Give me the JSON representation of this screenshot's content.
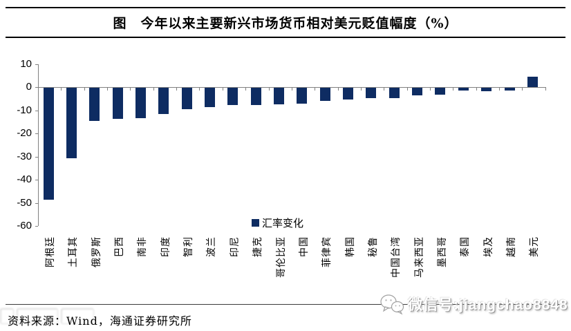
{
  "header": {
    "title": "图　今年以来主要新兴市场货币相对美元贬值幅度（%）"
  },
  "chart_data": {
    "type": "bar",
    "title": "今年以来主要新兴市场货币相对美元贬值幅度（%）",
    "categories": [
      "阿根廷",
      "土耳其",
      "俄罗斯",
      "巴西",
      "南非",
      "印度",
      "智利",
      "波兰",
      "印尼",
      "捷克",
      "哥伦比亚",
      "中国",
      "菲律宾",
      "韩国",
      "秘鲁",
      "中国台湾",
      "马来西亚",
      "墨西哥",
      "泰国",
      "埃及",
      "越南",
      "美元"
    ],
    "values": [
      -48.5,
      -30.5,
      -14.2,
      -13.3,
      -13.2,
      -11.3,
      -9.4,
      -8.3,
      -7.4,
      -7.4,
      -7.1,
      -6.8,
      -5.8,
      -5.2,
      -4.5,
      -4.4,
      -3.2,
      -3.1,
      -1.1,
      -1.5,
      -1.2,
      4.6
    ],
    "series_name": "汇率变化",
    "legend_label": "汇率变化",
    "legend_position": "center",
    "xlabel": "",
    "ylabel": "",
    "ylim": [
      -60,
      10
    ],
    "yticks": [
      10,
      0,
      -10,
      -20,
      -30,
      -40,
      -50,
      -60
    ],
    "grid": false,
    "bar_color": "#0e2c62",
    "axis_color": "#808080"
  },
  "footer": {
    "source": "资料来源：Wind，海通证券研究所",
    "watermark": "微信号:jiangchao8848"
  }
}
